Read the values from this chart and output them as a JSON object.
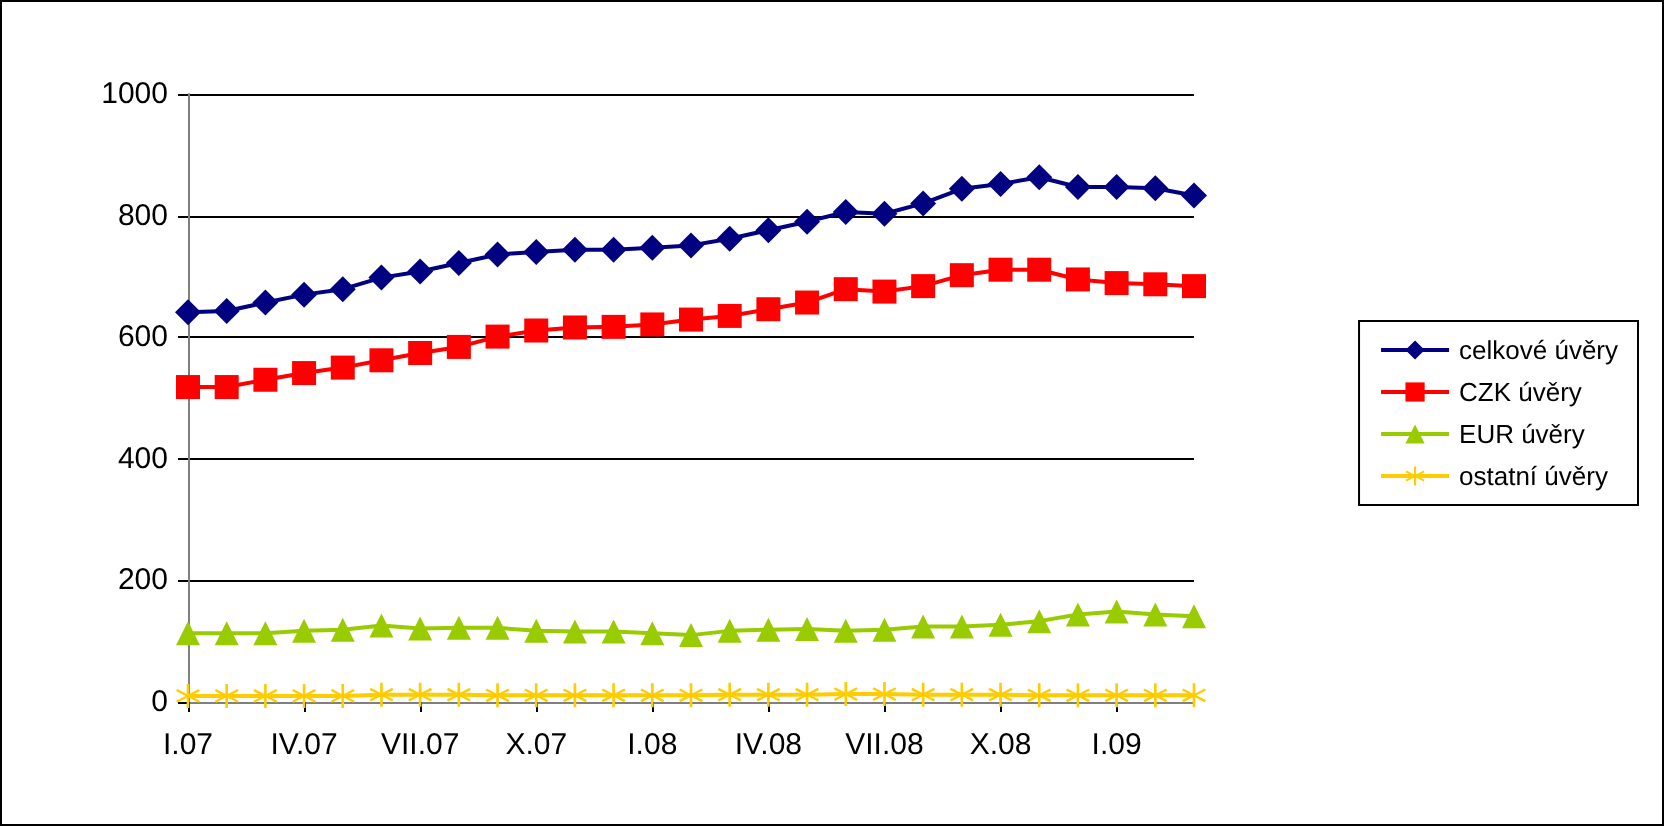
{
  "chart_data": {
    "type": "line",
    "categories": [
      "I.07",
      null,
      null,
      "IV.07",
      null,
      null,
      "VII.07",
      null,
      null,
      "X.07",
      null,
      null,
      "I.08",
      null,
      null,
      "IV.08",
      null,
      null,
      "VII.08",
      null,
      null,
      "X.08",
      null,
      null,
      "I.09",
      null,
      null
    ],
    "series": [
      {
        "name": "celkové úvěry",
        "color": "#000080",
        "marker": "diamond",
        "values": [
          641,
          643,
          657,
          670,
          679,
          698,
          708,
          722,
          736,
          740,
          744,
          744,
          747,
          751,
          762,
          776,
          790,
          806,
          803,
          820,
          844,
          852,
          863,
          847,
          847,
          845,
          833
        ]
      },
      {
        "name": "CZK úvěry",
        "color": "#ff0000",
        "marker": "square",
        "values": [
          518,
          518,
          530,
          541,
          550,
          562,
          574,
          584,
          601,
          611,
          616,
          617,
          621,
          629,
          635,
          646,
          657,
          679,
          675,
          684,
          702,
          711,
          711,
          695,
          689,
          687,
          684
        ]
      },
      {
        "name": "EUR úvěry",
        "color": "#99cc00",
        "marker": "triangle",
        "values": [
          113,
          113,
          113,
          117,
          119,
          126,
          121,
          122,
          122,
          117,
          116,
          116,
          113,
          110,
          117,
          119,
          120,
          117,
          119,
          124,
          124,
          127,
          133,
          144,
          149,
          144,
          141
        ]
      },
      {
        "name": "ostatní úvěry",
        "color": "#ffcc00",
        "marker": "cross",
        "values": [
          10,
          10,
          10,
          10,
          10,
          12,
          12,
          12,
          11,
          11,
          11,
          11,
          11,
          11,
          12,
          12,
          12,
          13,
          13,
          12,
          12,
          12,
          11,
          11,
          11,
          11,
          11
        ]
      }
    ],
    "ylim": [
      0,
      1000
    ],
    "yticks": [
      0,
      200,
      400,
      600,
      800,
      1000
    ],
    "grid": "y",
    "legend": "right"
  }
}
